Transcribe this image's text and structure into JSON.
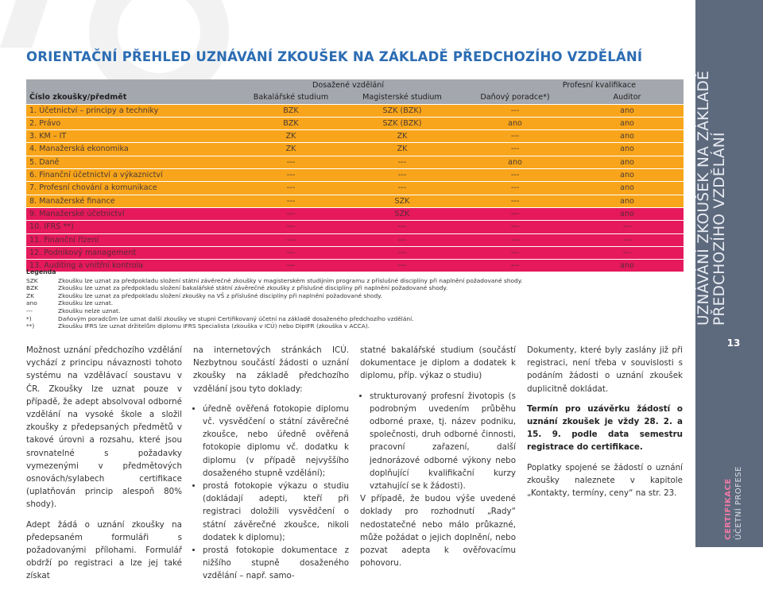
{
  "title": "ORIENTAČNÍ PŘEHLED UZNÁVÁNÍ ZKOUŠEK NA ZÁKLADĚ PŘEDCHOZÍHO VZDĚLÁNÍ",
  "table": {
    "header": {
      "subject": "Číslo zkoušky/předmět",
      "groups": [
        "Dosažené vzdělání",
        "Profesní kvalifikace"
      ],
      "columns": [
        "Bakalářské studium",
        "Magisterské studium",
        "Daňový poradce*)",
        "Auditor"
      ]
    },
    "rows": [
      {
        "color": "#f8a51b",
        "cells": [
          "1. Účetnictví – principy a techniky",
          "BZK",
          "SZK (BZK)",
          "---",
          "ano"
        ]
      },
      {
        "color": "#f8a51b",
        "cells": [
          "2. Právo",
          "BZK",
          "SZK (BZK)",
          "ano",
          "ano"
        ]
      },
      {
        "color": "#f8a51b",
        "cells": [
          "3. KM – IT",
          "ZK",
          "ZK",
          "---",
          "ano"
        ]
      },
      {
        "color": "#f8a51b",
        "cells": [
          "4. Manažerská ekonomika",
          "ZK",
          "ZK",
          "---",
          "ano"
        ]
      },
      {
        "color": "#f8a51b",
        "cells": [
          "5. Daně",
          "---",
          "---",
          "ano",
          "ano"
        ]
      },
      {
        "color": "#f8a51b",
        "cells": [
          "6. Finanční účetnictví a výkaznictví",
          "---",
          "---",
          "---",
          "ano"
        ]
      },
      {
        "color": "#f8a51b",
        "cells": [
          "7. Profesní chování a komunikace",
          "---",
          "---",
          "---",
          "ano"
        ]
      },
      {
        "color": "#f8a51b",
        "cells": [
          "8. Manažerské finance",
          "---",
          "SZK",
          "---",
          "ano"
        ]
      },
      {
        "color": "#e5195c",
        "cells": [
          "9. Manažerské účetnictví",
          "---",
          "SZK",
          "---",
          "ano"
        ]
      },
      {
        "color": "#e5195c",
        "cells": [
          "10. IFRS **)",
          "---",
          "---",
          "---",
          "---"
        ]
      },
      {
        "color": "#e5195c",
        "cells": [
          "11. Finanční řízení",
          "---",
          "---",
          "---",
          "---"
        ]
      },
      {
        "color": "#e5195c",
        "cells": [
          "12. Podnikový management",
          "---",
          "---",
          "---",
          "---"
        ]
      },
      {
        "color": "#e5195c",
        "cells": [
          "13. Auditing a vnitřní kontrola",
          "---",
          "---",
          "---",
          "ano"
        ]
      }
    ]
  },
  "legend": {
    "title": "Legenda",
    "items": [
      {
        "key": "SZK",
        "text": "Zkoušku lze uznat za předpokladu složení státní závěrečné zkoušky v magisterském studijním programu z příslušné disciplíny při naplnění požadované shody."
      },
      {
        "key": "BZK",
        "text": "Zkoušku lze uznat za předpokladu složení bakalářské státní závěrečné zkoušky z příslušné disciplíny při naplnění požadované shody."
      },
      {
        "key": "ZK",
        "text": "Zkoušku lze uznat za předpokladu složení zkoušky na VŠ z příslušné disciplíny při naplnění požadované shody."
      },
      {
        "key": "ano",
        "text": "Zkoušku lze uznat."
      },
      {
        "key": "---",
        "text": "Zkoušku nelze uznat."
      },
      {
        "key": "*)",
        "text": "Daňovým poradcům lze uznat další zkoušky ve stupni Certifikovaný účetní na základě dosaženého předchozího vzdělání."
      },
      {
        "key": "**)",
        "text": "Zkoušku IFRS lze uznat držitelům diplomu IFRS Specialista (zkouška v ICÚ) nebo DipIFR (zkouška v ACCA)."
      }
    ]
  },
  "columns": [
    [
      {
        "type": "p",
        "text": "Možnost uznání předchozího vzdělání vychází z principu návaznosti tohoto systému na vzdělávací soustavu v ČR. Zkoušky lze uznat pouze v případě, že adept absolvoval odborné vzdělání na vysoké škole a složil zkoušky z předepsaných předmětů v takové úrovni a rozsahu, které jsou srovnatelné s požadavky vymezenými v předmětových osnovách/sylabech certifikace (uplatňován princip alespoň 80% shody)."
      },
      {
        "type": "p",
        "text": "Adept žádá o uznání zkoušky na předepsaném formuláři s požadovanými přílohami. Formulář obdrží po registraci a lze jej také získat"
      }
    ],
    [
      {
        "type": "p",
        "text": "na internetových stránkách ICÚ. Nezbytnou součástí žádosti o uznání zkoušky na základě předchozího vzdělání jsou tyto doklady:"
      },
      {
        "type": "li",
        "text": "úředně ověřená fotokopie diplomu vč. vysvědčení o státní závěrečné zkoušce, nebo úředně ověřená fotokopie diplomu vč. dodatku k diplomu (v případě nejvyššího dosaženého stupně vzdělání);"
      },
      {
        "type": "li",
        "text": "prostá fotokopie výkazu o studiu (dokládají adepti, kteří při registraci doložili vysvědčení o státní závěrečné zkoušce, nikoli dodatek k diplomu);"
      },
      {
        "type": "li",
        "text": "prostá fotokopie dokumentace z nižšího stupně dosaženého vzdělání – např. samo-"
      }
    ],
    [
      {
        "type": "p",
        "text": "statné bakalářské studium (součástí dokumentace je diplom a dodatek k diplomu, příp. výkaz o studiu)"
      },
      {
        "type": "li",
        "text": "strukturovaný profesní životopis (s podrobným uvedením průběhu odborné praxe, tj. název podniku, společnosti, druh odborné činnosti, pracovní zařazení, další jednorázové odborné výkony nebo doplňující kvalifikační kurzy vztahující se k žádosti)."
      },
      {
        "type": "p",
        "text": "V případě, že budou výše uvedené doklady pro rozhodnutí „Rady“ nedostatečné nebo málo průkazné, může požádat o jejich doplnění, nebo pozvat adepta k ověřovacímu pohovoru."
      }
    ],
    [
      {
        "type": "p",
        "text": "Dokumenty, které byly zaslány již při registraci, není třeba v souvislosti s podáním žádosti o uznání zkoušek duplicitně dokládat."
      },
      {
        "type": "b",
        "text": "Termín pro uzávěrku žádostí o uznání zkoušek je vždy 28. 2. a 15. 9. podle data semestru registrace do certifikace."
      },
      {
        "type": "p",
        "text": "Poplatky spojené se žádostí o uznání zkoušky naleznete v kapitole „Kontakty, termíny, ceny“ na str. 23."
      }
    ]
  ],
  "sidebar": {
    "heading_lines": [
      "UZNÁVÁNÍ ZKOUŠEK NA ZÁKLADĚ",
      "PŘEDCHOZÍHO VZDĚLÁNÍ"
    ],
    "page_number": "13",
    "section": "CERTIFIKACE",
    "subsection": "ÚČETNÍ PROFESE"
  }
}
